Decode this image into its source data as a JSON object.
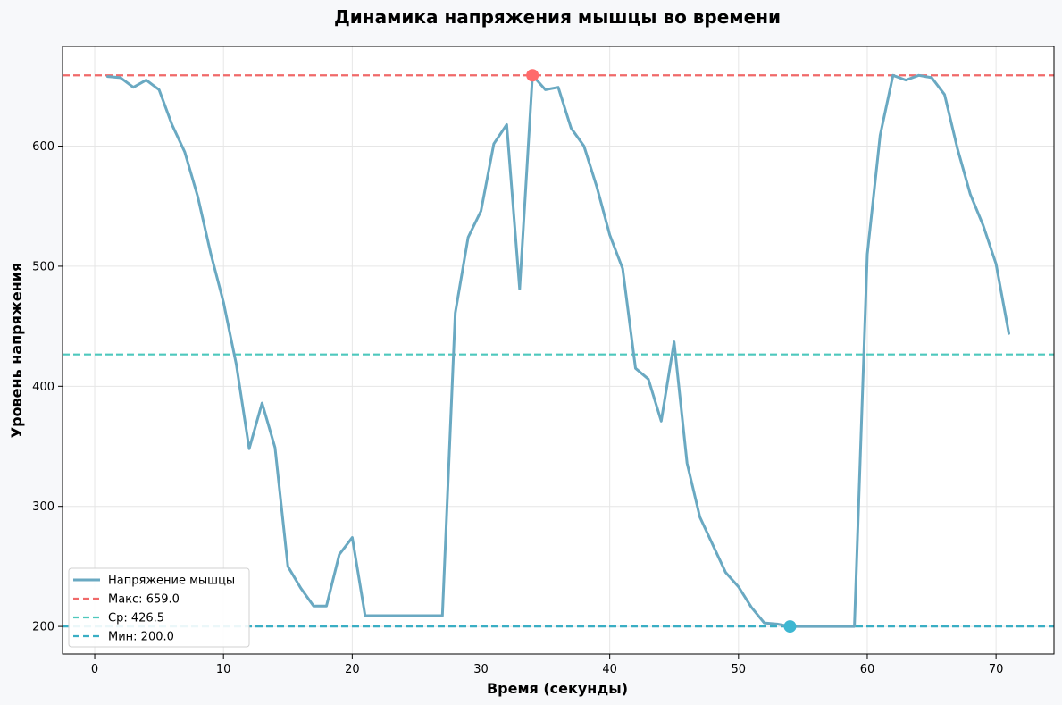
{
  "chart_data": {
    "type": "line",
    "title": "Динамика напряжения мышцы во времени",
    "xlabel": "Время (секунды)",
    "ylabel": "Уровень напряжения",
    "xlim": [
      -2.5,
      74.5
    ],
    "ylim": [
      177,
      683
    ],
    "x_ticks": [
      0,
      10,
      20,
      30,
      40,
      50,
      60,
      70
    ],
    "y_ticks": [
      200,
      300,
      400,
      500,
      600
    ],
    "grid": true,
    "legend_position": "lower-left",
    "series": [
      {
        "name": "Напряжение мышцы",
        "color": "#6aa9c2",
        "x": [
          1,
          2,
          3,
          4,
          5,
          6,
          7,
          8,
          9,
          10,
          11,
          12,
          13,
          14,
          15,
          16,
          17,
          18,
          19,
          20,
          21,
          22,
          23,
          24,
          25,
          26,
          27,
          28,
          29,
          30,
          31,
          32,
          33,
          34,
          35,
          36,
          37,
          38,
          39,
          40,
          41,
          42,
          43,
          44,
          45,
          46,
          47,
          48,
          49,
          50,
          51,
          52,
          53,
          54,
          55,
          56,
          57,
          58,
          59,
          60,
          61,
          62,
          63,
          64,
          65,
          66,
          67,
          68,
          69,
          70,
          71
        ],
        "y": [
          658,
          657,
          649,
          655,
          647,
          618,
          595,
          558,
          511,
          470,
          418,
          348,
          386,
          349,
          250,
          232,
          217,
          217,
          260,
          274,
          209,
          209,
          209,
          209,
          209,
          209,
          209,
          461,
          524,
          546,
          602,
          618,
          481,
          659,
          647,
          649,
          615,
          600,
          566,
          526,
          498,
          415,
          406,
          371,
          437,
          336,
          291,
          268,
          245,
          233,
          216,
          203,
          202,
          200,
          200,
          200,
          200,
          200,
          200,
          510,
          609,
          659,
          655,
          659,
          657,
          643,
          598,
          560,
          534,
          502,
          444
        ]
      }
    ],
    "reference_lines": [
      {
        "label": "Макс: 659.0",
        "value": 659.0,
        "color": "#f06a6a"
      },
      {
        "label": "Ср: 426.5",
        "value": 426.5,
        "color": "#4ec8bd"
      },
      {
        "label": "Мин: 200.0",
        "value": 200.0,
        "color": "#3aaec4"
      }
    ],
    "markers": [
      {
        "x": 34,
        "y": 659,
        "color": "#ff6b6b"
      },
      {
        "x": 54,
        "y": 200,
        "color": "#3db7d2"
      }
    ]
  }
}
